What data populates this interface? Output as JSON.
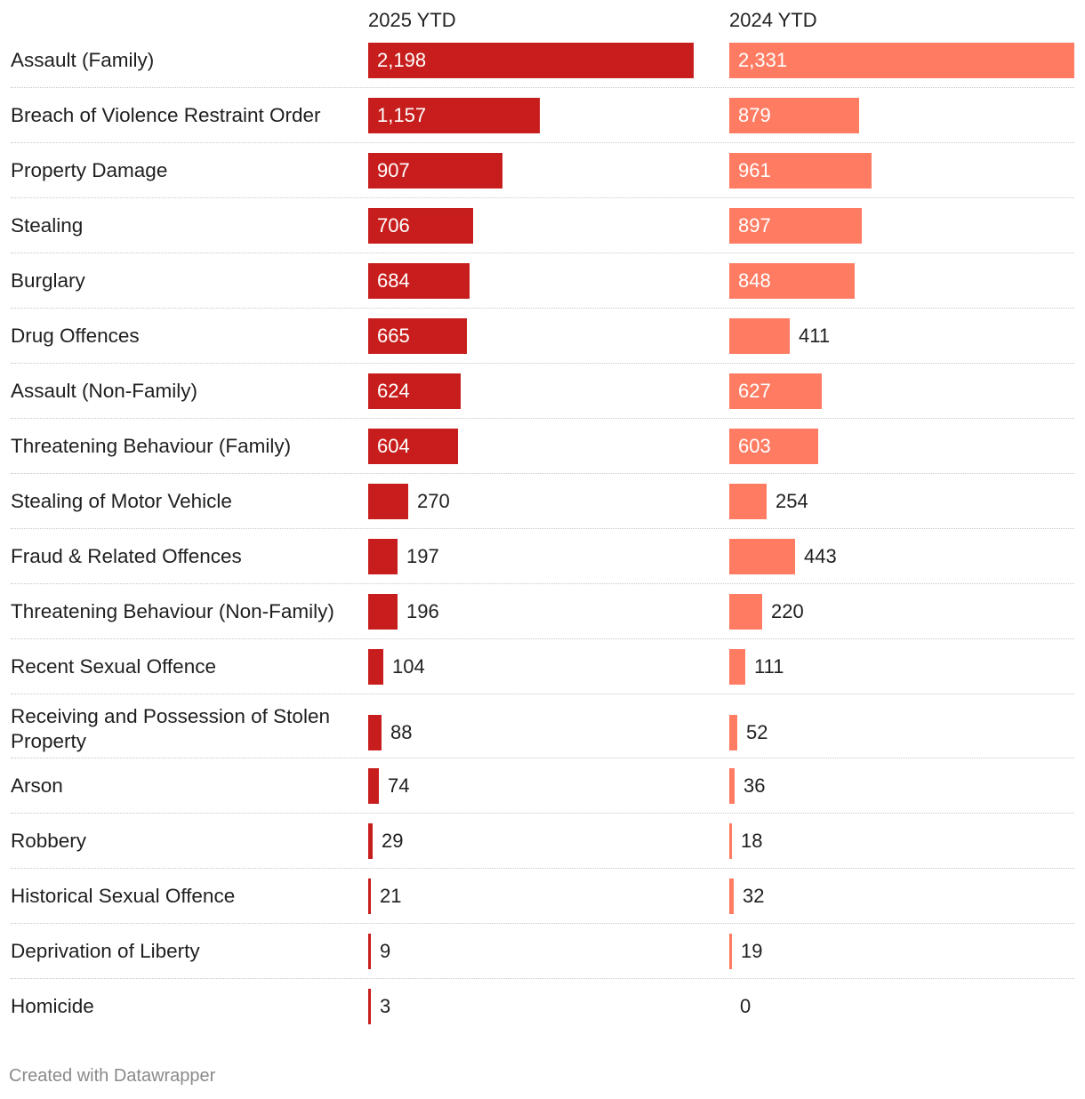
{
  "chart_data": {
    "type": "bar",
    "orientation": "horizontal",
    "series": [
      {
        "name": "2025 YTD",
        "color": "#c71e1d",
        "values": [
          2198,
          1157,
          907,
          706,
          684,
          665,
          624,
          604,
          270,
          197,
          196,
          104,
          88,
          74,
          29,
          21,
          9,
          3
        ],
        "labels": [
          "2,198",
          "1,157",
          "907",
          "706",
          "684",
          "665",
          "624",
          "604",
          "270",
          "197",
          "196",
          "104",
          "88",
          "74",
          "29",
          "21",
          "9",
          "3"
        ]
      },
      {
        "name": "2024 YTD",
        "color": "#ff7c63",
        "values": [
          2331,
          879,
          961,
          897,
          848,
          411,
          627,
          603,
          254,
          443,
          220,
          111,
          52,
          36,
          18,
          32,
          19,
          0
        ],
        "labels": [
          "2,331",
          "879",
          "961",
          "897",
          "848",
          "411",
          "627",
          "603",
          "254",
          "443",
          "220",
          "111",
          "52",
          "36",
          "18",
          "32",
          "19",
          "0"
        ]
      }
    ],
    "categories": [
      "Assault (Family)",
      "Breach of Violence Restraint Order",
      "Property Damage",
      "Stealing",
      "Burglary",
      "Drug Offences",
      "Assault (Non-Family)",
      "Threatening Behaviour (Family)",
      "Stealing of Motor Vehicle",
      "Fraud & Related Offences",
      "Threatening Behaviour (Non-Family)",
      "Recent Sexual Offence",
      "Receiving and Possession of Stolen Property",
      "Arson",
      "Robbery",
      "Historical Sexual Offence",
      "Deprivation of Liberty",
      "Homicide"
    ],
    "xlim": [
      0,
      2331
    ],
    "grid": false,
    "legend": "column headers"
  },
  "footer": {
    "credit": "Created with Datawrapper"
  }
}
